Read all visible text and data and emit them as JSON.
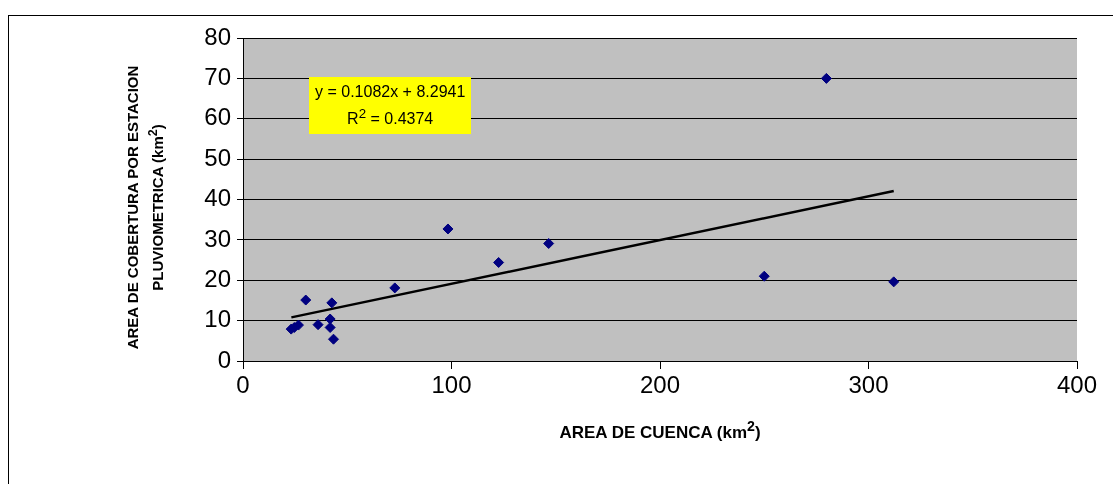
{
  "chart_data": {
    "type": "scatter",
    "xlabel": "AREA DE CUENCA (km$^{2}$)",
    "ylabel": "AREA DE COBERTURA POR ESTACION PLUVIOMETRICA (km$^{2}$)",
    "xlim": [
      0,
      400
    ],
    "xticks": [
      0,
      100,
      200,
      300,
      400
    ],
    "ylim": [
      0,
      80
    ],
    "yticks": [
      0,
      10,
      20,
      30,
      40,
      50,
      60,
      70,
      80
    ],
    "grid": "y",
    "legend": false,
    "marker": "diamond",
    "annotations": [
      "y = 0.1082x + 8.2941",
      "R$^{2}$ = 0.4374"
    ],
    "series": [
      {
        "color": "#000080",
        "x": [
          23.1,
          24.6,
          26.6,
          30.1,
          36.0,
          41.8,
          41.8,
          42.6,
          43.4,
          72.8,
          98.3,
          122.6,
          146.6,
          250.0,
          279.8,
          312.1
        ],
        "values": [
          7.9,
          8.3,
          8.9,
          15.1,
          9.0,
          10.4,
          8.3,
          14.4,
          5.4,
          18.1,
          32.7,
          24.4,
          29.1,
          21.0,
          70.0,
          19.6
        ]
      },
      {
        "type": "line",
        "marker": "none",
        "color": "#000000",
        "x": [
          23.2,
          312.1
        ],
        "values": [
          10.8,
          42.1
        ]
      }
    ]
  }
}
